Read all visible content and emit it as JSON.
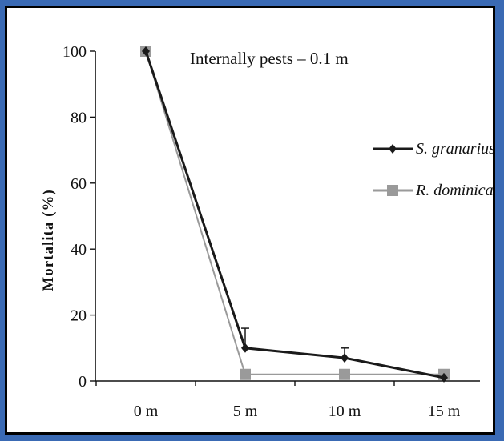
{
  "chart_data": {
    "type": "line",
    "title": "Internally pests – 0.1 m",
    "xlabel": "",
    "ylabel": "Mortalita (%)",
    "categories": [
      "0 m",
      "5 m",
      "10 m",
      "15 m"
    ],
    "ylim": [
      0,
      100
    ],
    "yticks": [
      0,
      20,
      40,
      60,
      80,
      100
    ],
    "legend_position": "right",
    "series": [
      {
        "name": "S. granarius",
        "values": [
          100,
          10,
          7,
          1
        ],
        "errors": [
          0,
          6,
          3,
          0
        ],
        "color": "#1a1a1a",
        "marker": "diamond"
      },
      {
        "name": "R. dominica",
        "values": [
          100,
          2,
          2,
          2
        ],
        "errors": [
          0,
          0,
          0,
          0
        ],
        "color": "#9a9a9a",
        "marker": "square"
      }
    ]
  }
}
